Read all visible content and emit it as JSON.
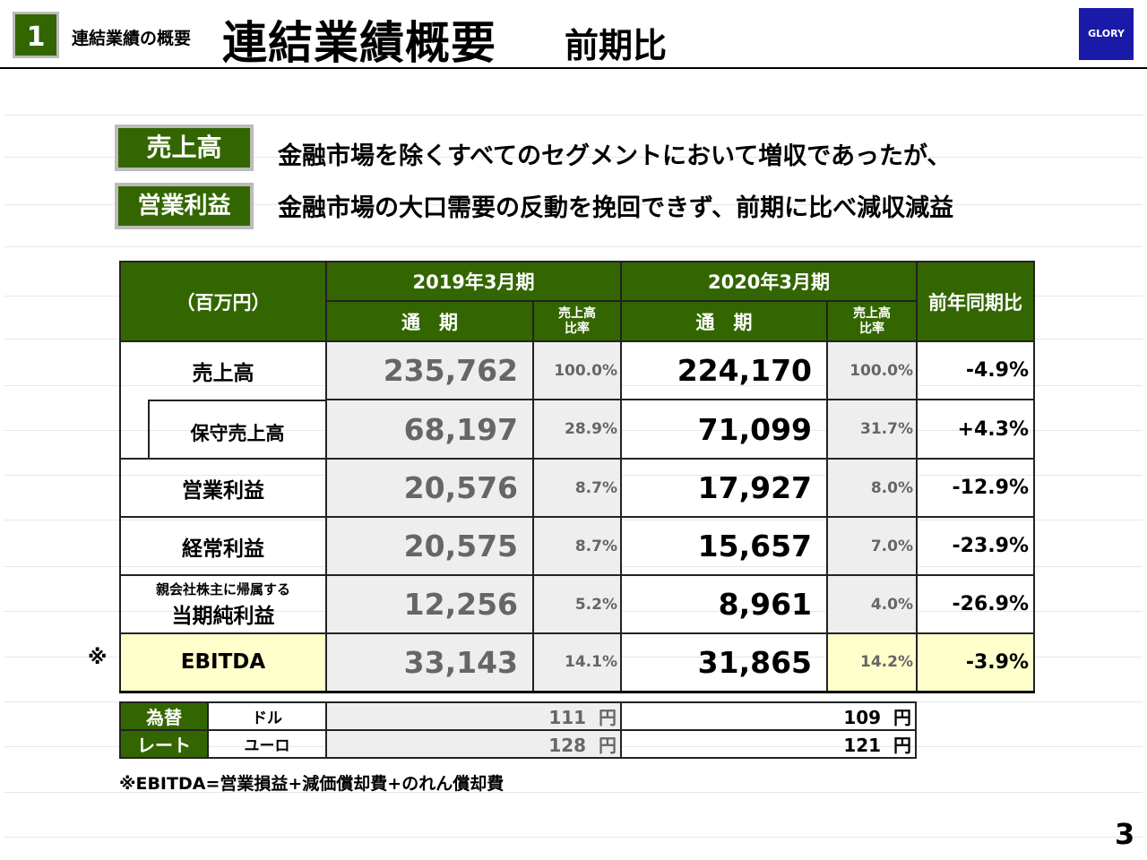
{
  "header": {
    "section_number": "1",
    "section_label": "連結業績の概要",
    "title": "連結業績概要",
    "subtitle": "前期比",
    "logo": "GLORY"
  },
  "summary": [
    {
      "tag": "売上高",
      "text": "金融市場を除くすべてのセグメントにおいて増収であったが、"
    },
    {
      "tag": "営業利益",
      "text": "金融市場の大口需要の反動を挽回できず、前期に比べ減収減益"
    }
  ],
  "table": {
    "unit": "（百万円）",
    "fy2019": "2019年3月期",
    "fy2020": "2020年3月期",
    "full_year": "通　期",
    "ratio_line1": "売上高",
    "ratio_line2": "比率",
    "yoy": "前年同期比",
    "rows": [
      {
        "label": "売上高",
        "v2019": "235,762",
        "r2019": "100.0%",
        "v2020": "224,170",
        "r2020": "100.0%",
        "yoy": "-4.9%"
      },
      {
        "label": "保守売上高",
        "v2019": "68,197",
        "r2019": "28.9%",
        "v2020": "71,099",
        "r2020": "31.7%",
        "yoy": "+4.3%"
      },
      {
        "label": "営業利益",
        "v2019": "20,576",
        "r2019": "8.7%",
        "v2020": "17,927",
        "r2020": "8.0%",
        "yoy": "-12.9%"
      },
      {
        "label": "経常利益",
        "v2019": "20,575",
        "r2019": "8.7%",
        "v2020": "15,657",
        "r2020": "7.0%",
        "yoy": "-23.9%"
      },
      {
        "label_small": "親会社株主に帰属する",
        "label": "当期純利益",
        "v2019": "12,256",
        "r2019": "5.2%",
        "v2020": "8,961",
        "r2020": "4.0%",
        "yoy": "-26.9%"
      },
      {
        "label": "EBITDA",
        "mark": "※",
        "v2019": "33,143",
        "r2019": "14.1%",
        "v2020": "31,865",
        "r2020": "14.2%",
        "yoy": "-3.9%"
      }
    ]
  },
  "fx": {
    "label1": "為替",
    "label2": "レート",
    "rows": [
      {
        "currency": "ドル",
        "v2019": "111",
        "v2020": "109"
      },
      {
        "currency": "ユーロ",
        "v2019": "128",
        "v2020": "121"
      }
    ],
    "unit": "円"
  },
  "note": "※EBITDA=営業損益+減価償却費+のれん償却費",
  "page_number": "3"
}
